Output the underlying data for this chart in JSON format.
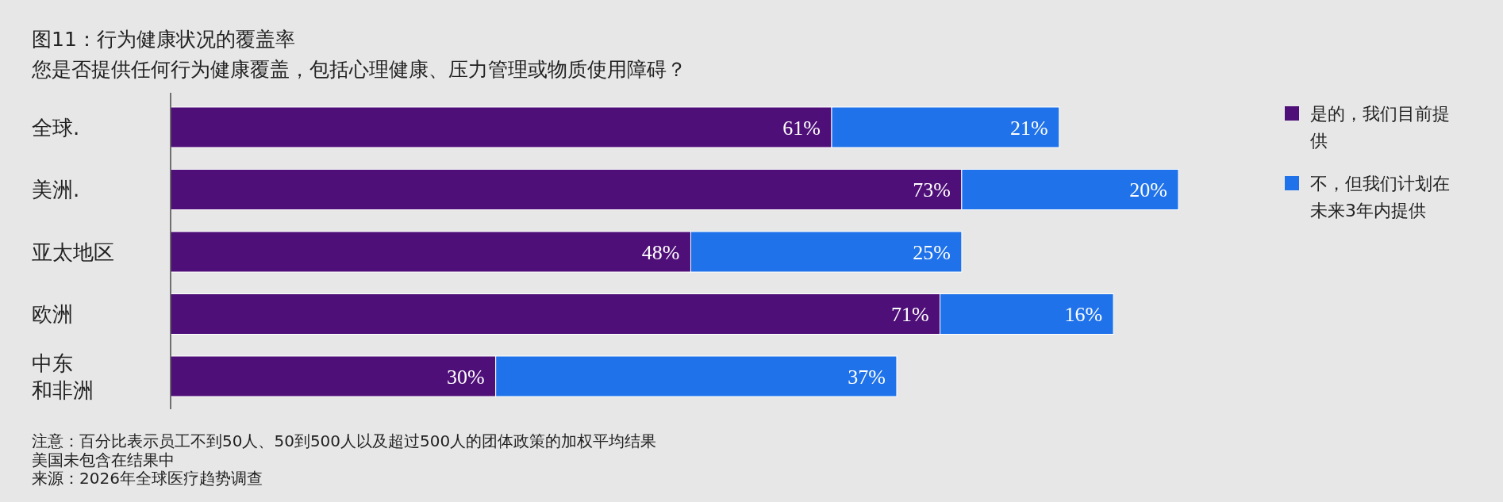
{
  "chart_data": {
    "type": "bar",
    "orientation": "horizontal",
    "stacked": true,
    "title": "图11：行为健康状况的覆盖率",
    "subtitle": "您是否提供任何行为健康覆盖，包括心理健康、压力管理或物质使用障碍？",
    "categories": [
      "全球.",
      "美洲.",
      "亚太地区",
      "欧洲",
      "中东和非洲"
    ],
    "series": [
      {
        "name": "是的，我们目前提供",
        "color": "#4f0f78",
        "values": [
          61,
          73,
          48,
          71,
          30
        ],
        "value_labels": [
          "61%",
          "73%",
          "48%",
          "71%",
          "30%"
        ]
      },
      {
        "name": "不，但我们计划在未来3年内提供",
        "color": "#1f72ea",
        "values": [
          21,
          20,
          25,
          16,
          37
        ],
        "value_labels": [
          "21%",
          "20%",
          "25%",
          "16%",
          "37%"
        ]
      }
    ],
    "legend": "right",
    "annotations": [
      "注意：百分比表示员工不到50人、50到500人以及超过500人的团体政策的加权平均结果",
      "美国未包含在结果中",
      "来源：2026年全球医疗趋势调查"
    ]
  }
}
